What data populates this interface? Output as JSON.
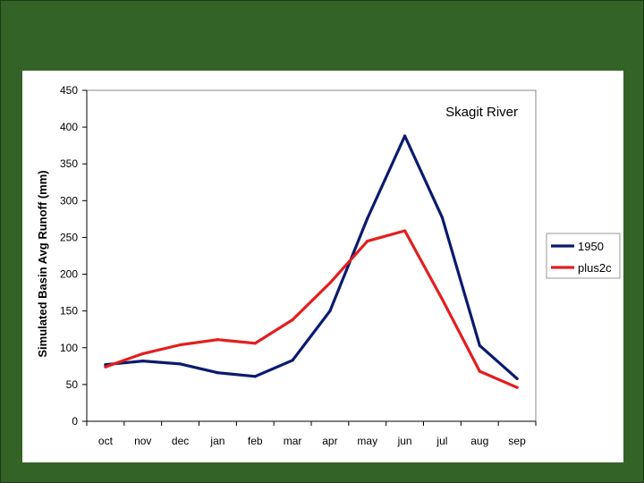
{
  "chart_data": {
    "type": "line",
    "title": "Skagit River",
    "xlabel": "",
    "ylabel": "Simulated Basin Avg Runoff (mm)",
    "categories": [
      "oct",
      "nov",
      "dec",
      "jan",
      "feb",
      "mar",
      "apr",
      "may",
      "jun",
      "jul",
      "aug",
      "sep"
    ],
    "ylim": [
      0,
      450
    ],
    "yticks": [
      0,
      50,
      100,
      150,
      200,
      250,
      300,
      350,
      400,
      450
    ],
    "grid": false,
    "legend_position": "right",
    "series": [
      {
        "name": "1950",
        "color": "#0a1a6e",
        "values": [
          77,
          82,
          78,
          66,
          61,
          83,
          150,
          276,
          388,
          277,
          103,
          58
        ]
      },
      {
        "name": "plus2c",
        "color": "#e31e1e",
        "values": [
          74,
          92,
          104,
          111,
          106,
          138,
          188,
          245,
          259,
          166,
          68,
          46
        ]
      }
    ]
  }
}
